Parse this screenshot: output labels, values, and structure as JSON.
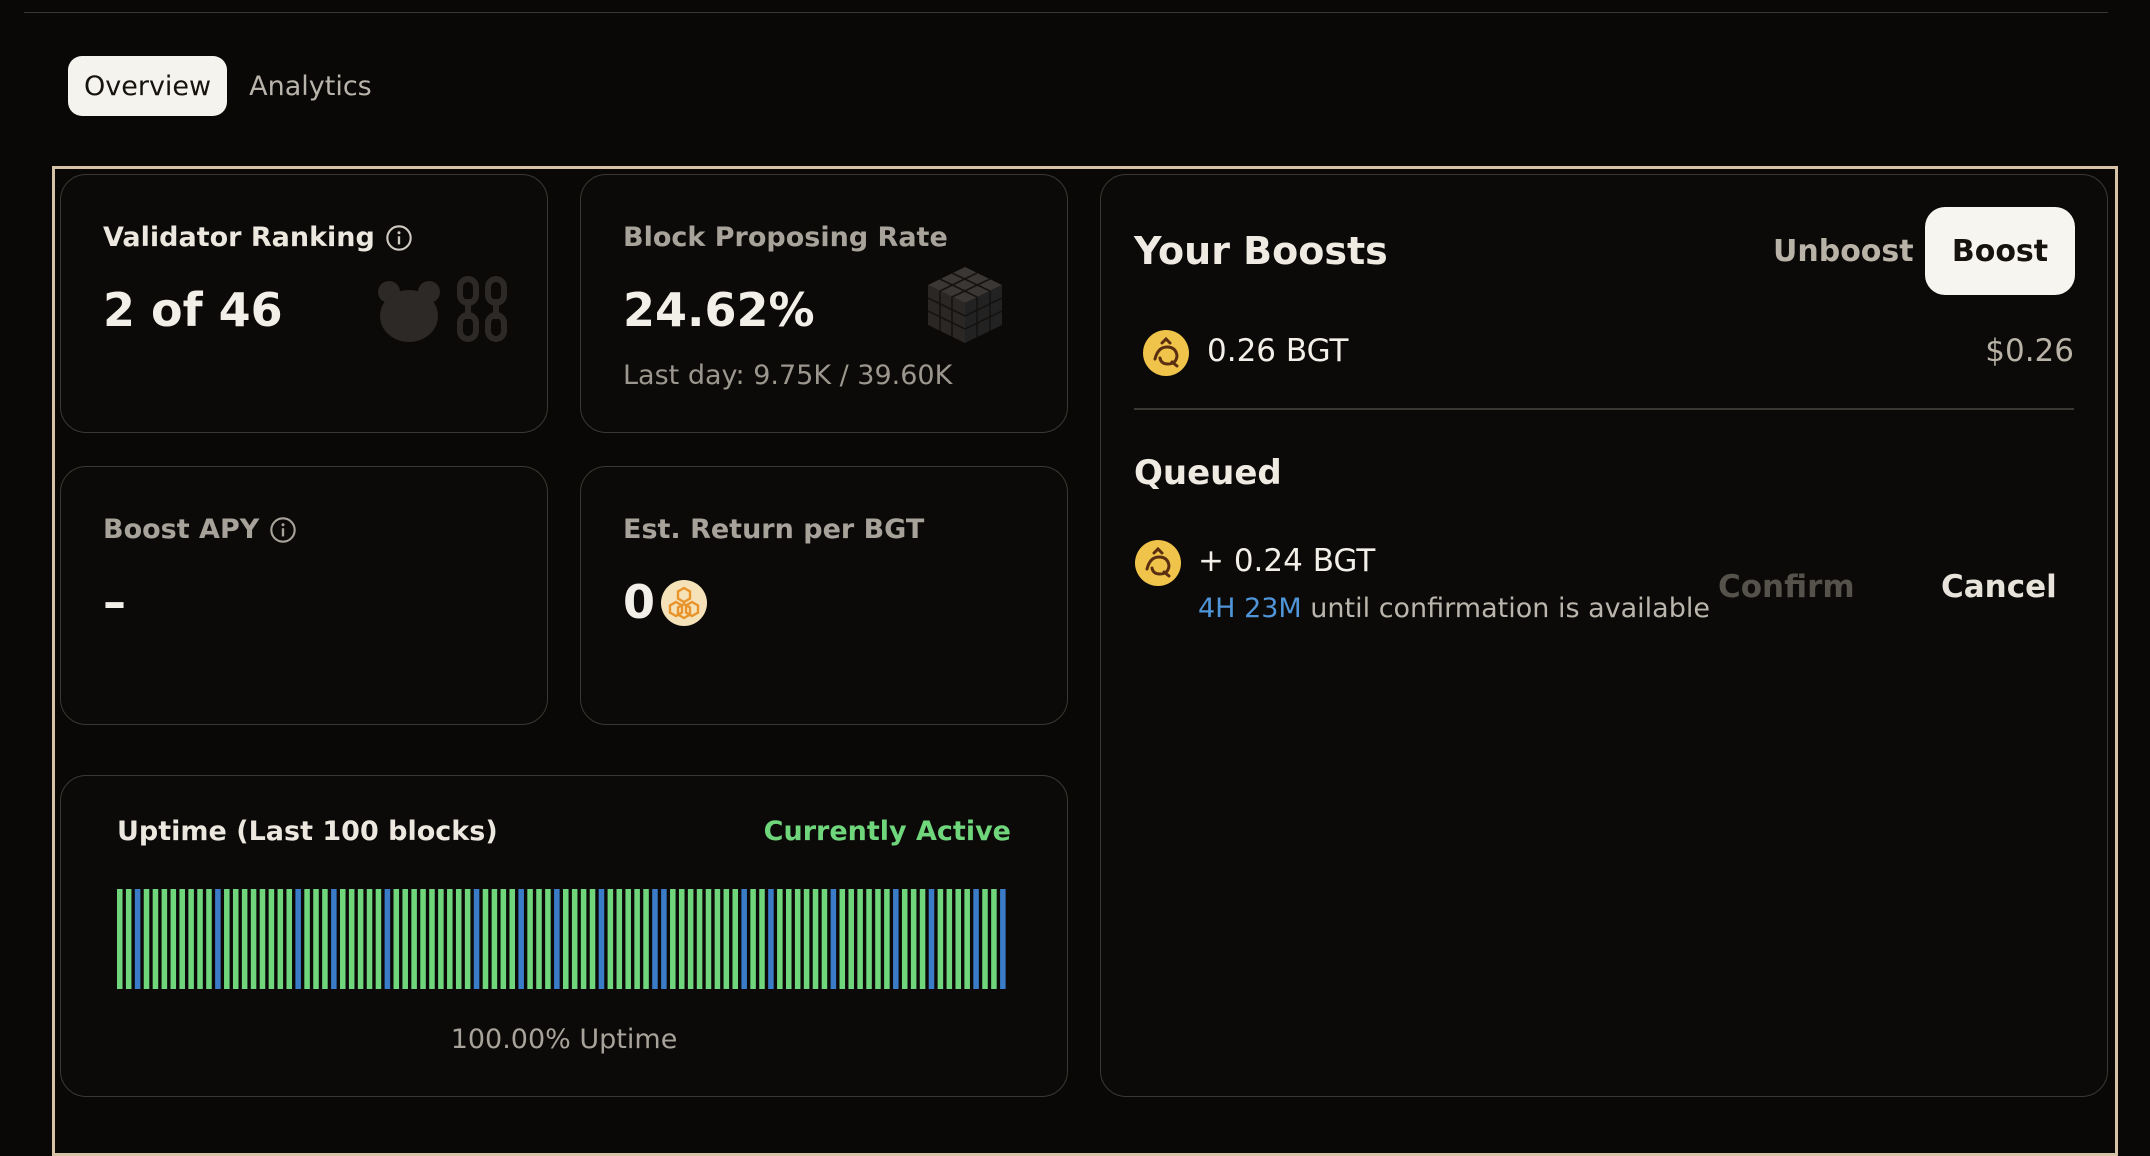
{
  "tabs": [
    {
      "label": "Overview",
      "active": true
    },
    {
      "label": "Analytics",
      "active": false
    }
  ],
  "validator_ranking": {
    "title": "Validator Ranking",
    "value": "2 of 46",
    "icons": [
      "info-icon",
      "bear-icon",
      "chain-icon"
    ]
  },
  "block_proposing": {
    "title": "Block Proposing Rate",
    "value": "24.62%",
    "sub": "Last day: 9.75K / 39.60K",
    "icons": [
      "cube-icon"
    ]
  },
  "boost_apy": {
    "title": "Boost APY",
    "value": "–",
    "icons": [
      "info-icon"
    ]
  },
  "est_return": {
    "title": "Est. Return per BGT",
    "value": "0",
    "icons": [
      "honeycomb-token-icon"
    ]
  },
  "uptime": {
    "title": "Uptime (Last 100 blocks)",
    "status": "Currently Active",
    "caption": "100.00% Uptime",
    "blue_blocks": [
      2,
      11,
      20,
      24,
      30,
      40,
      45,
      49,
      54,
      60,
      61,
      70,
      73,
      80,
      87,
      91,
      96,
      99
    ],
    "colors": {
      "green": "#6fd67c",
      "blue": "#3a7cc8",
      "active_text": "#6fd67c"
    }
  },
  "boosts": {
    "title": "Your Boosts",
    "unboost_label": "Unboost",
    "boost_label": "Boost",
    "amount": "0.26 BGT",
    "usd": "$0.26",
    "queued_title": "Queued",
    "queued_amount": "+ 0.24 BGT",
    "timer": "4H 23M",
    "timer_suffix": " until confirmation is available",
    "confirm_label": "Confirm",
    "cancel_label": "Cancel",
    "icons": [
      "bgt-token-icon"
    ],
    "colors": {
      "token": "#f0c44a",
      "timer": "#4f95d8"
    }
  }
}
